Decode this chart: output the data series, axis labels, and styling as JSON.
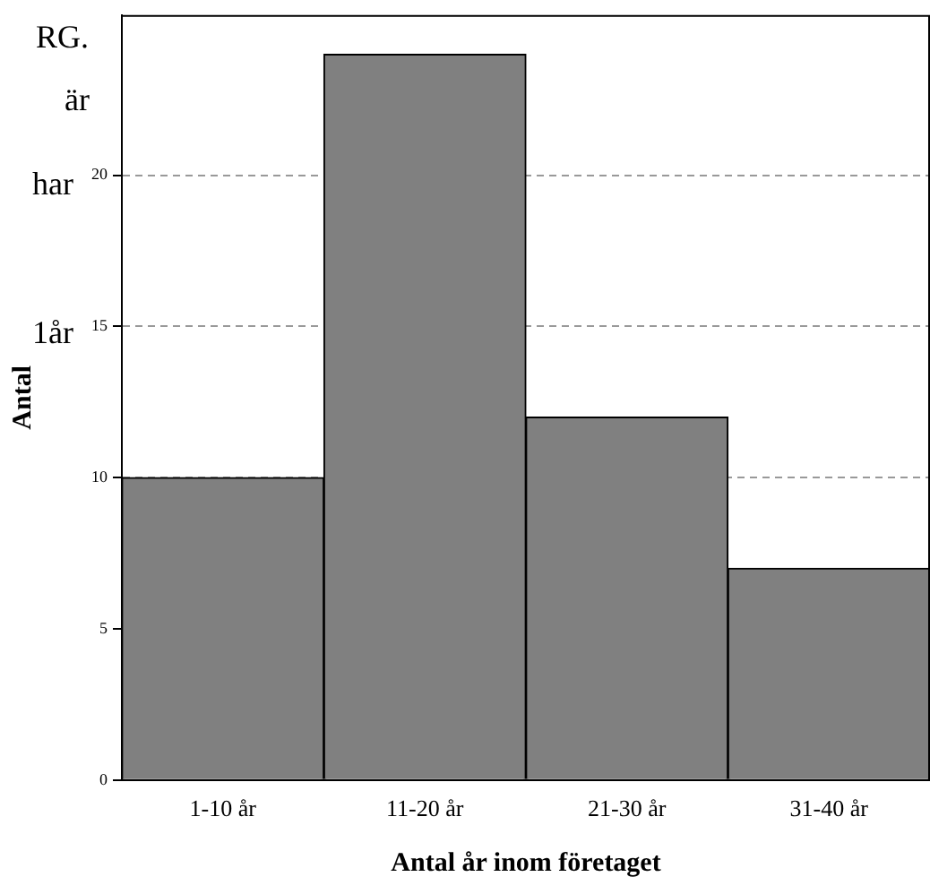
{
  "chart_data": {
    "type": "bar",
    "xlabel": "Antal år inom företaget",
    "ylabel": "Antal",
    "categories": [
      "1-10 år",
      "11-20 år",
      "21-30 år",
      "31-40 år"
    ],
    "values": [
      10,
      24,
      12,
      7
    ],
    "color": "#808080",
    "ylim": [
      0,
      25.3
    ],
    "yticks": [
      0,
      5,
      10,
      15,
      20
    ],
    "grid": "y",
    "legend": false,
    "annotations": [
      "RG.",
      "är",
      "har",
      "1år"
    ]
  }
}
